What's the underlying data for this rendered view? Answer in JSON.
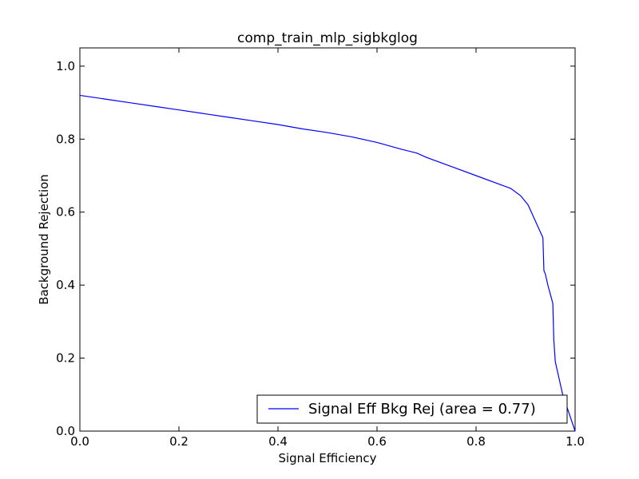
{
  "chart_data": {
    "type": "line",
    "title": "comp_train_mlp_sigbkglog",
    "xlabel": "Signal Efficiency",
    "ylabel": "Background Rejection",
    "xlim": [
      0.0,
      1.0
    ],
    "ylim": [
      0.0,
      1.05
    ],
    "xticks": [
      "0.0",
      "0.2",
      "0.4",
      "0.6",
      "0.8",
      "1.0"
    ],
    "yticks": [
      "0.0",
      "0.2",
      "0.4",
      "0.6",
      "0.8",
      "1.0"
    ],
    "grid": false,
    "legend_position": "lower-right",
    "series": [
      {
        "name": "Signal Eff Bkg Rej (area = 0.77)",
        "color": "#0000ff",
        "x": [
          0.0,
          0.05,
          0.1,
          0.15,
          0.2,
          0.25,
          0.3,
          0.35,
          0.4,
          0.45,
          0.5,
          0.55,
          0.6,
          0.65,
          0.68,
          0.7,
          0.75,
          0.8,
          0.85,
          0.87,
          0.89,
          0.905,
          0.915,
          0.925,
          0.935,
          0.937,
          0.94,
          0.945,
          0.95,
          0.953,
          0.955,
          0.957,
          0.96,
          0.965,
          0.97,
          0.975,
          0.98,
          0.99,
          1.0
        ],
        "y": [
          0.92,
          0.91,
          0.9,
          0.89,
          0.88,
          0.87,
          0.86,
          0.85,
          0.84,
          0.828,
          0.818,
          0.806,
          0.791,
          0.772,
          0.762,
          0.75,
          0.725,
          0.7,
          0.675,
          0.665,
          0.645,
          0.62,
          0.59,
          0.56,
          0.53,
          0.44,
          0.43,
          0.4,
          0.375,
          0.36,
          0.35,
          0.25,
          0.19,
          0.16,
          0.13,
          0.1,
          0.08,
          0.04,
          0.0
        ]
      }
    ]
  }
}
